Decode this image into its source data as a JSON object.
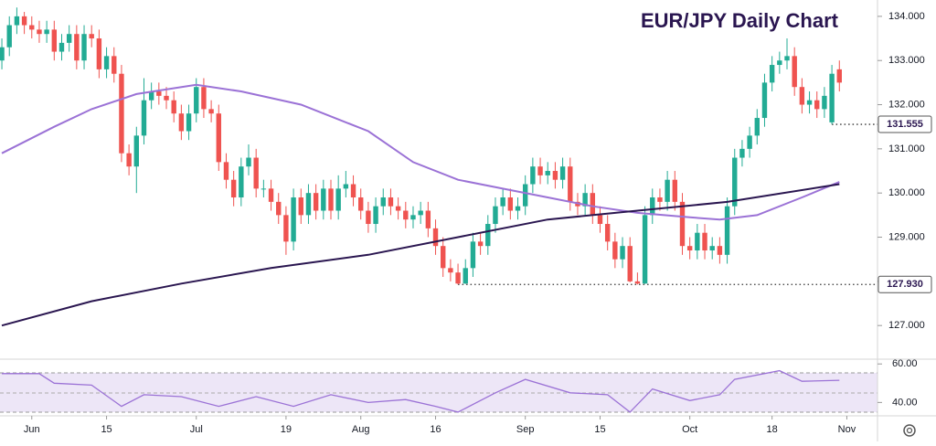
{
  "chart_data": {
    "type": "candlestick",
    "title": "EUR/JPY Daily Chart",
    "up_color": "#22ab94",
    "down_color": "#ef5350",
    "xlim": [
      -0.25,
      117.1
    ],
    "xticks": [
      {
        "value": 4,
        "label": "Jun"
      },
      {
        "value": 14,
        "label": "15"
      },
      {
        "value": 26,
        "label": "Jul"
      },
      {
        "value": 38,
        "label": "19"
      },
      {
        "value": 48,
        "label": "Aug"
      },
      {
        "value": 58,
        "label": "16"
      },
      {
        "value": 70,
        "label": "Sep"
      },
      {
        "value": 80,
        "label": "15"
      },
      {
        "value": 92,
        "label": "Oct"
      },
      {
        "value": 103,
        "label": "18"
      },
      {
        "value": 113,
        "label": "Nov"
      }
    ],
    "ylim": [
      126.3,
      134.37
    ],
    "yticks": [
      {
        "value": 127,
        "label": "127.000"
      },
      {
        "value": 128,
        "label": "128.000"
      },
      {
        "value": 129,
        "label": "129.000"
      },
      {
        "value": 130,
        "label": "130.000"
      },
      {
        "value": 131,
        "label": "131.000"
      },
      {
        "value": 132,
        "label": "132.000"
      },
      {
        "value": 133,
        "label": "133.000"
      },
      {
        "value": 134,
        "label": "134.000"
      }
    ],
    "candles": {
      "open": [
        133.0,
        133.3,
        133.8,
        134.0,
        133.8,
        133.7,
        133.6,
        133.7,
        133.2,
        133.4,
        133.6,
        133.0,
        133.6,
        133.5,
        132.8,
        133.1,
        132.7,
        130.9,
        130.6,
        131.3,
        132.1,
        132.3,
        132.2,
        132.1,
        131.8,
        131.4,
        131.8,
        132.4,
        131.9,
        131.8,
        130.7,
        130.3,
        129.9,
        130.6,
        130.8,
        130.1,
        130.1,
        129.8,
        129.5,
        128.9,
        129.9,
        129.5,
        130.0,
        129.6,
        130.1,
        129.6,
        130.1,
        130.2,
        129.9,
        129.6,
        129.3,
        129.7,
        129.9,
        129.7,
        129.6,
        129.4,
        129.5,
        129.6,
        129.2,
        128.8,
        128.3,
        128.2,
        127.95,
        128.3,
        128.9,
        128.8,
        129.3,
        129.7,
        129.9,
        129.6,
        129.7,
        130.2,
        130.6,
        130.4,
        130.5,
        130.3,
        130.6,
        129.8,
        129.7,
        130.0,
        129.5,
        129.3,
        128.9,
        128.5,
        128.8,
        128.0,
        127.95,
        129.5,
        129.9,
        129.8,
        130.3,
        129.8,
        128.8,
        128.7,
        129.1,
        128.7,
        128.8,
        128.6,
        129.7,
        130.8,
        131.0,
        131.3,
        131.7,
        132.5,
        132.9,
        133.0,
        133.1,
        132.4,
        132.0,
        132.1,
        131.9,
        131.6,
        132.8
      ],
      "high": [
        133.5,
        134.0,
        134.2,
        134.1,
        134.0,
        133.9,
        133.9,
        133.9,
        133.6,
        133.8,
        133.8,
        133.8,
        133.8,
        133.7,
        133.3,
        133.3,
        132.9,
        131.1,
        131.5,
        132.6,
        132.5,
        132.5,
        132.4,
        132.3,
        132.0,
        132.0,
        132.6,
        132.6,
        132.1,
        132.0,
        130.9,
        130.5,
        130.8,
        131.1,
        131.0,
        130.3,
        130.3,
        130.0,
        129.7,
        130.1,
        130.1,
        130.2,
        130.2,
        130.3,
        130.3,
        130.4,
        130.5,
        130.4,
        130.1,
        129.8,
        129.9,
        130.1,
        130.1,
        129.9,
        129.8,
        129.7,
        129.8,
        129.8,
        129.4,
        129.0,
        128.5,
        128.4,
        128.5,
        129.1,
        129.1,
        129.5,
        129.9,
        130.1,
        130.1,
        129.9,
        130.4,
        130.8,
        130.8,
        130.7,
        130.7,
        130.8,
        130.8,
        130.0,
        130.2,
        130.2,
        129.7,
        129.5,
        129.1,
        129.0,
        129.0,
        128.2,
        129.7,
        130.1,
        130.1,
        130.5,
        130.5,
        130.0,
        129.0,
        129.3,
        129.3,
        129.0,
        129.0,
        129.9,
        131.0,
        131.2,
        131.5,
        131.9,
        132.7,
        133.1,
        133.2,
        133.5,
        133.3,
        132.6,
        132.3,
        132.3,
        132.4,
        132.9,
        133.0
      ],
      "low": [
        132.8,
        133.1,
        133.6,
        133.6,
        133.5,
        133.4,
        133.4,
        133.0,
        133.0,
        133.2,
        132.8,
        132.8,
        133.3,
        132.6,
        132.6,
        132.5,
        130.7,
        130.4,
        130.0,
        131.1,
        131.9,
        132.0,
        131.9,
        131.6,
        131.2,
        131.2,
        131.6,
        131.7,
        131.6,
        130.5,
        130.1,
        129.7,
        129.7,
        130.4,
        129.9,
        129.9,
        129.6,
        129.3,
        128.6,
        128.7,
        129.3,
        129.3,
        129.4,
        129.4,
        129.4,
        129.4,
        129.9,
        129.7,
        129.4,
        129.1,
        129.1,
        129.5,
        129.5,
        129.4,
        129.2,
        129.2,
        129.3,
        129.0,
        128.6,
        128.1,
        128.0,
        127.93,
        127.94,
        128.1,
        128.6,
        128.6,
        129.1,
        129.5,
        129.4,
        129.4,
        129.5,
        130.0,
        130.2,
        130.2,
        130.1,
        130.1,
        129.6,
        129.5,
        129.5,
        129.3,
        129.1,
        128.7,
        128.3,
        128.3,
        127.98,
        127.93,
        127.94,
        129.3,
        129.6,
        129.6,
        129.6,
        128.6,
        128.5,
        128.5,
        128.5,
        128.5,
        128.4,
        128.4,
        129.5,
        130.6,
        130.8,
        131.1,
        131.5,
        132.3,
        132.7,
        132.8,
        132.2,
        131.8,
        131.8,
        131.7,
        131.7,
        131.555,
        132.3
      ],
      "close": [
        133.3,
        133.8,
        134.0,
        133.8,
        133.7,
        133.6,
        133.7,
        133.2,
        133.4,
        133.6,
        133.0,
        133.6,
        133.5,
        132.8,
        133.1,
        132.7,
        130.9,
        130.6,
        131.3,
        132.1,
        132.3,
        132.2,
        132.1,
        131.8,
        131.4,
        131.8,
        132.4,
        131.9,
        131.8,
        130.7,
        130.3,
        129.9,
        130.6,
        130.8,
        130.1,
        130.1,
        129.8,
        129.5,
        128.9,
        129.9,
        129.5,
        130.0,
        129.6,
        130.1,
        129.6,
        130.1,
        130.2,
        129.9,
        129.6,
        129.3,
        129.7,
        129.9,
        129.7,
        129.6,
        129.4,
        129.5,
        129.6,
        129.2,
        128.8,
        128.3,
        128.2,
        127.95,
        128.3,
        128.9,
        128.8,
        129.3,
        129.7,
        129.9,
        129.6,
        129.7,
        130.2,
        130.6,
        130.4,
        130.5,
        130.3,
        130.6,
        129.8,
        129.7,
        130.0,
        129.5,
        129.3,
        128.9,
        128.5,
        128.8,
        128.0,
        127.95,
        129.5,
        129.9,
        129.8,
        130.3,
        129.8,
        128.8,
        128.7,
        129.1,
        128.7,
        128.8,
        128.6,
        129.7,
        130.8,
        131.0,
        131.3,
        131.7,
        132.5,
        132.9,
        133.0,
        133.1,
        132.4,
        132.0,
        132.1,
        131.9,
        132.2,
        132.7,
        132.5
      ]
    },
    "lines": [
      {
        "color": "#9b72d6",
        "x": [
          0,
          7,
          12,
          18,
          26,
          32,
          40,
          49,
          55,
          61,
          67,
          73,
          79,
          85,
          92,
          96,
          101,
          107,
          112
        ],
        "values": [
          130.9,
          131.5,
          131.9,
          132.24,
          132.45,
          132.3,
          132.0,
          131.4,
          130.7,
          130.3,
          130.1,
          129.9,
          129.7,
          129.55,
          129.45,
          129.4,
          129.5,
          129.9,
          130.25
        ]
      },
      {
        "color": "#2a1650",
        "x": [
          0,
          12,
          24,
          36,
          49,
          61,
          73,
          85,
          97,
          112
        ],
        "values": [
          127.0,
          127.55,
          127.95,
          128.3,
          128.6,
          129.0,
          129.4,
          129.6,
          129.8,
          130.2
        ]
      }
    ],
    "annotations": [
      {
        "x": 111,
        "value": 131.555,
        "label": "131.555"
      },
      {
        "x": 61,
        "value": 127.93,
        "label": "127.930"
      }
    ],
    "rsi": {
      "color": "#9b72d6",
      "ylim": [
        34,
        62
      ],
      "yticks": [
        {
          "value": 60,
          "label": "60.00"
        },
        {
          "value": 40,
          "label": "40.00"
        }
      ],
      "x": [
        0,
        5,
        7,
        12,
        16,
        19,
        24,
        29,
        34,
        39,
        44,
        49,
        54,
        58,
        61,
        66,
        70,
        76,
        81,
        84,
        87,
        92,
        96,
        98,
        104,
        107,
        112
      ],
      "values": [
        55,
        55,
        50,
        49,
        38,
        44,
        43,
        38,
        43,
        38,
        44,
        40,
        41.5,
        38,
        35,
        45,
        52,
        45,
        44,
        35,
        47,
        41,
        44,
        52,
        56.5,
        51,
        51.5
      ]
    }
  }
}
